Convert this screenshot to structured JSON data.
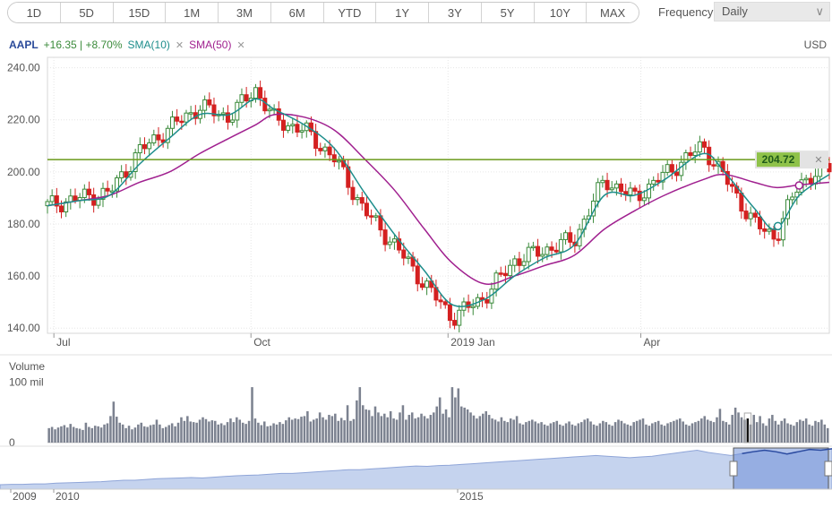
{
  "toolbar": {
    "ranges": [
      "1D",
      "5D",
      "15D",
      "1M",
      "3M",
      "6M",
      "YTD",
      "1Y",
      "3Y",
      "5Y",
      "10Y",
      "MAX"
    ],
    "frequency_label": "Frequency",
    "frequency_value": "Daily"
  },
  "legend": {
    "symbol": "AAPL",
    "change": "+16.35 | +8.70%",
    "sma10": "SMA(10)",
    "sma50": "SMA(50)",
    "currency": "USD"
  },
  "colors": {
    "up": "#3a8a3a",
    "down": "#d42020",
    "sma10": "#1e8e8c",
    "sma50": "#a0208f",
    "level_line": "#6a9a1a",
    "volume": "#7c8290",
    "navigator_fill": "#c5d3ee"
  },
  "chart_data": [
    {
      "type": "line",
      "title": "",
      "y_ticks": [
        "240.00",
        "220.00",
        "200.00",
        "180.00",
        "160.00",
        "140.00"
      ],
      "ylim": [
        138,
        244
      ],
      "x_ticks": [
        "Jul",
        "Oct",
        "2019 Jan",
        "Apr"
      ],
      "current_level": {
        "value": 204.72,
        "label": "204.72"
      },
      "series": [
        {
          "name": "AAPL",
          "x": [
            "2018-06-28",
            "2018-07-13",
            "2018-07-27",
            "2018-08-10",
            "2018-08-24",
            "2018-09-07",
            "2018-09-21",
            "2018-10-03",
            "2018-10-12",
            "2018-10-26",
            "2018-11-09",
            "2018-11-23",
            "2018-12-07",
            "2018-12-21",
            "2019-01-03",
            "2019-01-18",
            "2019-02-01",
            "2019-02-15",
            "2019-03-01",
            "2019-03-15",
            "2019-03-29",
            "2019-04-12",
            "2019-04-30",
            "2019-05-10",
            "2019-05-24",
            "2019-06-03",
            "2019-06-14",
            "2019-06-28"
          ],
          "values": [
            187,
            190,
            192,
            208,
            217,
            225,
            221,
            232,
            220,
            216,
            205,
            185,
            172,
            157,
            144,
            152,
            166,
            170,
            174,
            197,
            190,
            199,
            210,
            198,
            180,
            175,
            196,
            202
          ]
        },
        {
          "name": "SMA(10)",
          "values": [
            187,
            189,
            191,
            203,
            213,
            222,
            222,
            228,
            224,
            218,
            209,
            192,
            176,
            162,
            149,
            151,
            160,
            167,
            172,
            191,
            191,
            197,
            207,
            200,
            186,
            178,
            191,
            199
          ]
        },
        {
          "name": "SMA(50)",
          "values": [
            187,
            189,
            191,
            196,
            200,
            207,
            213,
            218,
            222,
            221,
            216,
            205,
            193,
            178,
            165,
            157,
            160,
            164,
            168,
            178,
            185,
            191,
            197,
            199,
            196,
            194,
            195,
            196
          ]
        }
      ]
    },
    {
      "type": "bar",
      "title": "Volume",
      "y_ticks": [
        "100 mil",
        "0"
      ],
      "ylim": [
        0,
        110
      ],
      "values": [
        24,
        26,
        22,
        25,
        27,
        29,
        25,
        31,
        26,
        24,
        23,
        21,
        33,
        26,
        24,
        28,
        27,
        25,
        30,
        32,
        44,
        68,
        43,
        33,
        30,
        24,
        28,
        22,
        25,
        30,
        33,
        27,
        26,
        29,
        30,
        38,
        30,
        24,
        26,
        29,
        32,
        27,
        33,
        42,
        36,
        44,
        35,
        34,
        33,
        38,
        42,
        39,
        35,
        37,
        36,
        30,
        32,
        29,
        34,
        40,
        34,
        42,
        38,
        33,
        31,
        36,
        92,
        40,
        33,
        29,
        35,
        27,
        28,
        32,
        30,
        34,
        31,
        37,
        42,
        38,
        40,
        39,
        43,
        44,
        52,
        35,
        38,
        40,
        50,
        42,
        38,
        46,
        44,
        48,
        36,
        41,
        37,
        62,
        36,
        39,
        70,
        92,
        62,
        55,
        54,
        44,
        60,
        50,
        44,
        48,
        42,
        52,
        40,
        38,
        50,
        62,
        38,
        46,
        50,
        40,
        42,
        48,
        44,
        40,
        46,
        50,
        60,
        75,
        48,
        55,
        42,
        92,
        75,
        90,
        60,
        58,
        55,
        50,
        45,
        40,
        44,
        48,
        52,
        46,
        40,
        38,
        35,
        42,
        36,
        34,
        40,
        38,
        44,
        32,
        30,
        34,
        36,
        38,
        35,
        32,
        34,
        30,
        28,
        32,
        34,
        36,
        30,
        28,
        32,
        35,
        30,
        28,
        32,
        34,
        38,
        40,
        35,
        30,
        28,
        32,
        36,
        34,
        30,
        28,
        34,
        38,
        36,
        32,
        30,
        28,
        34,
        36,
        38,
        40,
        30,
        28,
        32,
        34,
        36,
        30,
        28,
        32,
        34,
        36,
        38,
        40,
        35,
        30,
        28,
        32,
        34,
        36,
        40,
        44,
        38,
        36,
        34,
        42,
        56,
        36,
        34,
        30,
        46,
        58,
        50,
        42,
        38,
        40,
        30,
        46,
        34,
        44,
        32,
        28,
        40,
        46,
        36,
        30,
        36,
        40,
        32,
        30,
        28,
        34,
        38,
        36,
        40,
        30,
        28,
        36,
        34,
        38,
        30,
        24
      ]
    },
    {
      "type": "area",
      "title": "",
      "x_ticks": [
        "2009",
        "2010",
        "2015"
      ],
      "values": [
        12,
        13,
        13,
        14,
        14,
        16,
        17,
        18,
        19,
        20,
        22,
        24,
        24,
        26,
        28,
        29,
        30,
        31,
        30,
        32,
        34,
        36,
        37,
        38,
        40,
        42,
        42,
        44,
        46,
        48,
        50,
        52,
        52,
        54,
        56,
        58,
        60,
        62,
        61,
        63,
        64,
        66,
        68,
        70,
        72,
        74,
        76,
        78,
        80,
        82,
        84,
        86,
        88,
        90,
        88,
        86,
        84,
        86,
        88,
        92,
        96,
        100,
        104,
        98,
        94,
        90,
        95,
        100,
        104,
        100,
        94,
        100,
        106,
        104,
        108
      ]
    }
  ]
}
